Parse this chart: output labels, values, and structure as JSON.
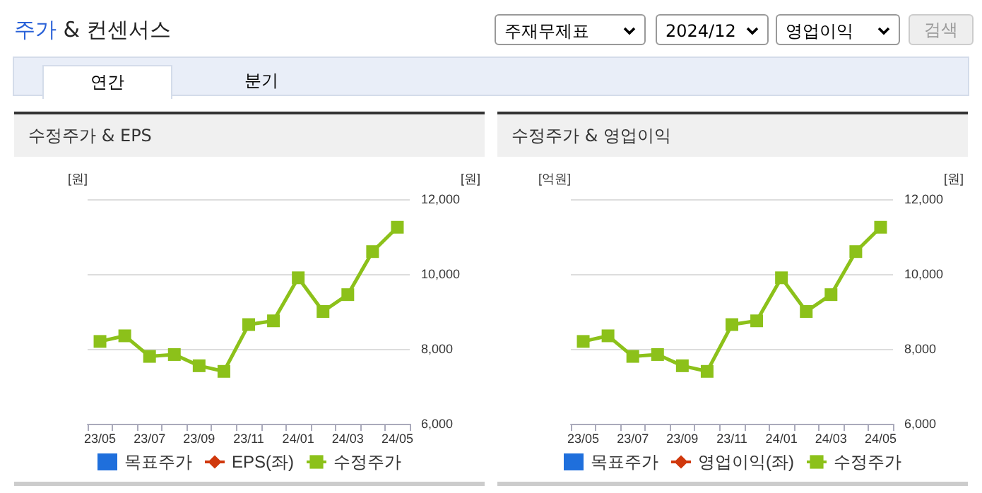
{
  "chart_data": [
    {
      "type": "other",
      "title": "주가 & 컨센서스",
      "annotations": [
        "주재무제표",
        "2024/12",
        "영업이익",
        "검색",
        "연간",
        "분기"
      ]
    },
    {
      "type": "line",
      "title": "수정주가 & EPS",
      "ylabel": "[원]",
      "y2label": "[원]",
      "categories": [
        "23/05",
        null,
        "23/07",
        null,
        "23/09",
        null,
        "23/11",
        null,
        "24/01",
        null,
        "24/03",
        null,
        "24/05"
      ],
      "series": [
        {
          "name": "목표주가",
          "type": "bar",
          "color": "#1f6fdc",
          "values": [
            null,
            null,
            null,
            null,
            null,
            null,
            null,
            null,
            null,
            null,
            null,
            null,
            null
          ]
        },
        {
          "name": "EPS(좌)",
          "type": "line",
          "color": "#d0380c",
          "marker": "diamond",
          "values": [
            null,
            null,
            null,
            null,
            null,
            null,
            null,
            null,
            null,
            null,
            null,
            null,
            null
          ]
        },
        {
          "name": "수정주가",
          "type": "line",
          "color": "#8cc11a",
          "axis": "y2",
          "marker": "square",
          "values": [
            8200,
            8350,
            7800,
            7850,
            7550,
            7400,
            8650,
            8750,
            9900,
            9000,
            9450,
            10600,
            11250
          ]
        }
      ],
      "y2lim": [
        6000,
        12000
      ],
      "y2ticks": [
        {
          "value": 6000,
          "label": "6,000"
        },
        {
          "value": 8000,
          "label": "8,000"
        },
        {
          "value": 10000,
          "label": "10,000"
        },
        {
          "value": 12000,
          "label": "12,000"
        }
      ],
      "grid": true,
      "legend": "bottom"
    },
    {
      "type": "line",
      "title": "수정주가 & 영업이익",
      "ylabel": "[억원]",
      "y2label": "[원]",
      "categories": [
        "23/05",
        null,
        "23/07",
        null,
        "23/09",
        null,
        "23/11",
        null,
        "24/01",
        null,
        "24/03",
        null,
        "24/05"
      ],
      "series": [
        {
          "name": "목표주가",
          "type": "bar",
          "color": "#1f6fdc",
          "values": [
            null,
            null,
            null,
            null,
            null,
            null,
            null,
            null,
            null,
            null,
            null,
            null,
            null
          ]
        },
        {
          "name": "영업이익(좌)",
          "type": "line",
          "color": "#d0380c",
          "marker": "diamond",
          "values": [
            null,
            null,
            null,
            null,
            null,
            null,
            null,
            null,
            null,
            null,
            null,
            null,
            null
          ]
        },
        {
          "name": "수정주가",
          "type": "line",
          "color": "#8cc11a",
          "axis": "y2",
          "marker": "square",
          "values": [
            8200,
            8350,
            7800,
            7850,
            7550,
            7400,
            8650,
            8750,
            9900,
            9000,
            9450,
            10600,
            11250
          ]
        }
      ],
      "y2lim": [
        6000,
        12000
      ],
      "y2ticks": [
        {
          "value": 6000,
          "label": "6,000"
        },
        {
          "value": 8000,
          "label": "8,000"
        },
        {
          "value": 10000,
          "label": "10,000"
        },
        {
          "value": 12000,
          "label": "12,000"
        }
      ],
      "grid": true,
      "legend": "bottom"
    }
  ]
}
